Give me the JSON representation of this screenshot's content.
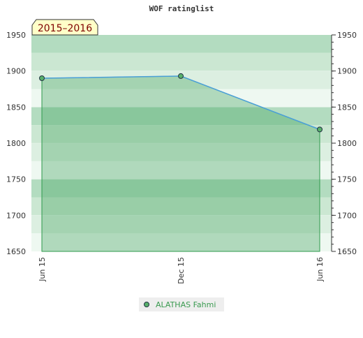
{
  "chart_data": {
    "type": "line",
    "title": "WOF ratinglist",
    "annotation": "2015–2016",
    "categories": [
      "Jun 15",
      "Dec 15",
      "Jun 16"
    ],
    "series": [
      {
        "name": "ALATHAS Fahmi",
        "color": "#4a9fd8",
        "values": [
          1890,
          1893,
          1819
        ]
      }
    ],
    "ylim": [
      1650,
      1950
    ],
    "yticks": [
      1650,
      1700,
      1750,
      1800,
      1850,
      1900,
      1950
    ],
    "grid": true
  }
}
